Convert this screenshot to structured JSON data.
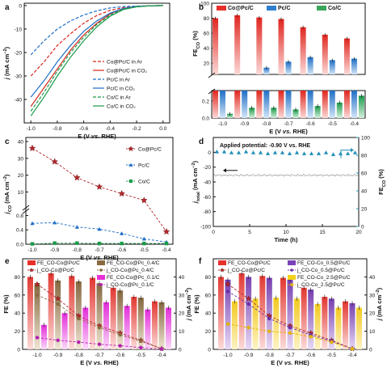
{
  "chart_data": [
    {
      "panel": "a",
      "type": "line",
      "xlabel": "E (V vs. RHE)",
      "ylabel": "j (mA cm⁻²)",
      "xlim": [
        -1.05,
        0.05
      ],
      "ylim": [
        -50,
        1
      ],
      "xticks": [
        "-1.0",
        "-0.8",
        "-0.6",
        "-0.4",
        "-0.2",
        "0.0"
      ],
      "yticks": [
        "0",
        "-10",
        "-20",
        "-30",
        "-40"
      ],
      "series": [
        {
          "name": "Co@Pc/C in Ar",
          "color": "#d7261e",
          "dash": "4,2",
          "x": [
            -1.0,
            -0.9,
            -0.8,
            -0.7,
            -0.6,
            -0.5,
            -0.4,
            -0.3,
            -0.2,
            -0.1,
            0.0
          ],
          "y": [
            -30,
            -24,
            -17,
            -12,
            -7.5,
            -4.2,
            -2.0,
            -0.9,
            -0.3,
            -0.1,
            0
          ]
        },
        {
          "name": "Co@Pc/C in CO₂",
          "color": "#d7261e",
          "dash": "",
          "x": [
            -1.0,
            -0.9,
            -0.8,
            -0.7,
            -0.6,
            -0.5,
            -0.4,
            -0.3,
            -0.2,
            -0.1,
            0.0
          ],
          "y": [
            -43,
            -35,
            -27,
            -19,
            -12.5,
            -7.5,
            -3.5,
            -1.2,
            -0.4,
            -0.1,
            0
          ]
        },
        {
          "name": "Pc/C in Ar",
          "color": "#1f6fc5",
          "dash": "4,2",
          "x": [
            -1.0,
            -0.9,
            -0.8,
            -0.7,
            -0.6,
            -0.5,
            -0.4,
            -0.3,
            -0.2,
            -0.1,
            0.0
          ],
          "y": [
            -21,
            -15,
            -10,
            -6.5,
            -4.0,
            -2.2,
            -1.0,
            -0.4,
            -0.2,
            -0.1,
            0
          ]
        },
        {
          "name": "Pc/C in CO₂",
          "color": "#1f6fc5",
          "dash": "",
          "x": [
            -1.0,
            -0.9,
            -0.8,
            -0.7,
            -0.6,
            -0.5,
            -0.4,
            -0.3,
            -0.2,
            -0.1,
            0.0
          ],
          "y": [
            -39,
            -32,
            -24,
            -17,
            -11,
            -6.5,
            -3.2,
            -1.2,
            -0.4,
            -0.1,
            0
          ]
        },
        {
          "name": "Co/C in Ar",
          "color": "#1a9a4a",
          "dash": "4,2",
          "x": [
            -1.0,
            -0.9,
            -0.8,
            -0.7,
            -0.6,
            -0.5,
            -0.4,
            -0.3,
            -0.2,
            -0.1,
            0.0
          ],
          "y": [
            -45,
            -37,
            -28,
            -20,
            -13.5,
            -8,
            -4,
            -1.5,
            -0.5,
            -0.1,
            0
          ]
        },
        {
          "name": "Co/C in CO₂",
          "color": "#1a9a4a",
          "dash": "",
          "x": [
            -1.0,
            -0.9,
            -0.8,
            -0.7,
            -0.6,
            -0.5,
            -0.4,
            -0.3,
            -0.2,
            -0.1,
            0.0
          ],
          "y": [
            -47,
            -39,
            -30,
            -22,
            -15,
            -9,
            -4.5,
            -1.7,
            -0.5,
            -0.1,
            0
          ]
        }
      ]
    },
    {
      "panel": "b",
      "type": "bar",
      "xlabel": "E (V vs. RHE)",
      "ylabel": "FE_CO (%)",
      "categories": [
        "-1.0",
        "-0.9",
        "-0.8",
        "-0.7",
        "-0.6",
        "-0.5",
        "-0.4"
      ],
      "yticks_top": [
        "20",
        "40",
        "60",
        "80",
        "100"
      ],
      "yticks_bottom": [
        "0.0",
        "0.2"
      ],
      "series": [
        {
          "name": "Co@Pc/C",
          "color": "#e8302a",
          "values": [
            80,
            84,
            81,
            79,
            68,
            58,
            53
          ],
          "errors": [
            2,
            2,
            2,
            2,
            2,
            2,
            2
          ]
        },
        {
          "name": "Pc/C",
          "color": "#2f7fcf",
          "values": [
            3,
            5,
            14,
            22,
            28,
            24,
            26
          ],
          "errors": [
            1,
            1,
            2,
            2,
            2,
            2,
            2
          ]
        },
        {
          "name": "Co/C",
          "color": "#3aa65a",
          "values": [
            0.05,
            0.12,
            0.12,
            0.1,
            0.14,
            0.18,
            0.26
          ],
          "errors": [
            0.02,
            0.02,
            0.02,
            0.02,
            0.02,
            0.02,
            0.02
          ]
        }
      ]
    },
    {
      "panel": "c",
      "type": "line",
      "xlabel": "E (V vs. RHE)",
      "ylabel": "j_CO (mA cm⁻²)",
      "categories": [
        "-1.0",
        "-0.9",
        "-0.8",
        "-0.7",
        "-0.6",
        "-0.5",
        "-0.4"
      ],
      "yticks_top": [
        "10",
        "20",
        "30",
        "40"
      ],
      "yticks_bottom": [
        "0.0",
        "0.4",
        "0.8"
      ],
      "series": [
        {
          "name": "Co@Pc/C",
          "color": "#b3282d",
          "marker": "star",
          "values": [
            36,
            28,
            18.5,
            13,
            9,
            5,
            0.35
          ]
        },
        {
          "name": "Pc/C",
          "color": "#1f6fc5",
          "marker": "triangle",
          "values": [
            0.58,
            0.6,
            0.48,
            0.42,
            0.3,
            0.15,
            0.06
          ]
        },
        {
          "name": "Co/C",
          "color": "#1a9a4a",
          "marker": "square",
          "values": [
            0.01,
            0.03,
            0.03,
            0.02,
            0.02,
            0.02,
            0.02
          ]
        }
      ]
    },
    {
      "panel": "d",
      "type": "scatter",
      "annotation": "Applied potential: -0.90 V vs. RHE",
      "xlabel": "Time (h)",
      "ylabel_left": "j_total (mA cm⁻²)",
      "ylabel_right": "FE_CO (%)",
      "xticks": [
        "0",
        "5",
        "10",
        "15",
        "20"
      ],
      "yticks_left": [
        "0",
        "-20",
        "-40",
        "-60",
        "-80",
        "-100"
      ],
      "yticks_right": [
        "0",
        "20",
        "40",
        "60",
        "80",
        "100"
      ],
      "fe_series": {
        "x": [
          0.5,
          1.5,
          2.5,
          3.5,
          4.5,
          5.5,
          6.5,
          7.5,
          8.5,
          9.5,
          10.5,
          11.5,
          12.5,
          13.5,
          14.5,
          15.5,
          16.5,
          17.5,
          18.5,
          19.5
        ],
        "y": [
          84,
          84,
          83,
          83,
          84,
          83,
          83,
          82,
          83,
          83,
          82,
          83,
          82,
          82,
          82,
          83,
          81,
          82,
          82,
          83
        ]
      },
      "j_total": -31
    },
    {
      "panel": "e",
      "type": "bar",
      "xlabel": "E (V vs. RHE)",
      "ylabel_left": "FE (%)",
      "ylabel_right": "j (mA cm⁻²)",
      "categories": [
        "-1.0",
        "-0.9",
        "-0.8",
        "-0.7",
        "-0.6",
        "-0.5",
        "-0.4"
      ],
      "legend": [
        "FE_CO-Co@Pc/C",
        "j_CO-Co@Pc/C",
        "FE_CO-Co@Pc_0.4/C",
        "j_CO-Co@Pc_0.4/C",
        "FE_CO-Co@Pc_0.1/C",
        "j_CO-Co@Pc_0.1/C"
      ],
      "yticks_left": [
        "0",
        "20",
        "40",
        "60",
        "80"
      ],
      "yticks_right": [
        "0",
        "10",
        "20",
        "30",
        "40"
      ],
      "fe_series": [
        {
          "color": "#e8302a",
          "values": [
            80,
            84,
            81,
            79,
            68,
            58,
            53
          ]
        },
        {
          "color": "#8a6a3f",
          "values": [
            72,
            76,
            75,
            73,
            65,
            57,
            52
          ]
        },
        {
          "color": "#e832d8",
          "values": [
            27,
            40,
            46,
            52,
            48,
            44,
            46
          ]
        }
      ],
      "j_series": [
        {
          "color": "#b3282d",
          "values": [
            36,
            28,
            18.5,
            13,
            9,
            5,
            0.35
          ]
        },
        {
          "color": "#8a6a3f",
          "values": [
            30,
            25,
            17,
            12,
            8,
            4.5,
            0.3
          ]
        },
        {
          "color": "#b41fb2",
          "values": [
            6.5,
            5.0,
            4.0,
            2.8,
            2.0,
            1.0,
            0.2
          ]
        }
      ]
    },
    {
      "panel": "f",
      "type": "bar",
      "xlabel": "E (V vs. RHE)",
      "ylabel_left": "FE (%)",
      "ylabel_right": "j (mA cm⁻²)",
      "categories": [
        "-1.0",
        "-0.9",
        "-0.8",
        "-0.7",
        "-0.6",
        "-0.5",
        "-0.4"
      ],
      "legend": [
        "FE_CO-Co@Pc/C",
        "j_CO-Co@Pc/C",
        "FE_CO-Co_0.5@Pc/C",
        "j_CO-Co_0.5@Pc/C",
        "FE_CO-Co_2.5@Pc/C",
        "j_CO-Co_2.5@Pc/C"
      ],
      "yticks_left": [
        "0",
        "20",
        "40",
        "60",
        "80"
      ],
      "yticks_right": [
        "0",
        "10",
        "20",
        "30",
        "40"
      ],
      "fe_series": [
        {
          "color": "#e8302a",
          "values": [
            80,
            84,
            81,
            79,
            68,
            58,
            53
          ]
        },
        {
          "color": "#7a42b8",
          "values": [
            77,
            80,
            79,
            77,
            66,
            56,
            51
          ]
        },
        {
          "color": "#f5d21b",
          "values": [
            53,
            56,
            57,
            56,
            50,
            46,
            46
          ]
        }
      ],
      "j_series": [
        {
          "color": "#b3282d",
          "values": [
            36,
            28,
            18.5,
            13,
            9,
            5,
            0.35
          ]
        },
        {
          "color": "#6a2fa8",
          "values": [
            32,
            25,
            17,
            12,
            8,
            4.5,
            0.3
          ]
        },
        {
          "color": "#e0b400",
          "values": [
            14,
            12,
            10,
            9,
            7,
            4,
            0.3
          ]
        }
      ]
    }
  ]
}
